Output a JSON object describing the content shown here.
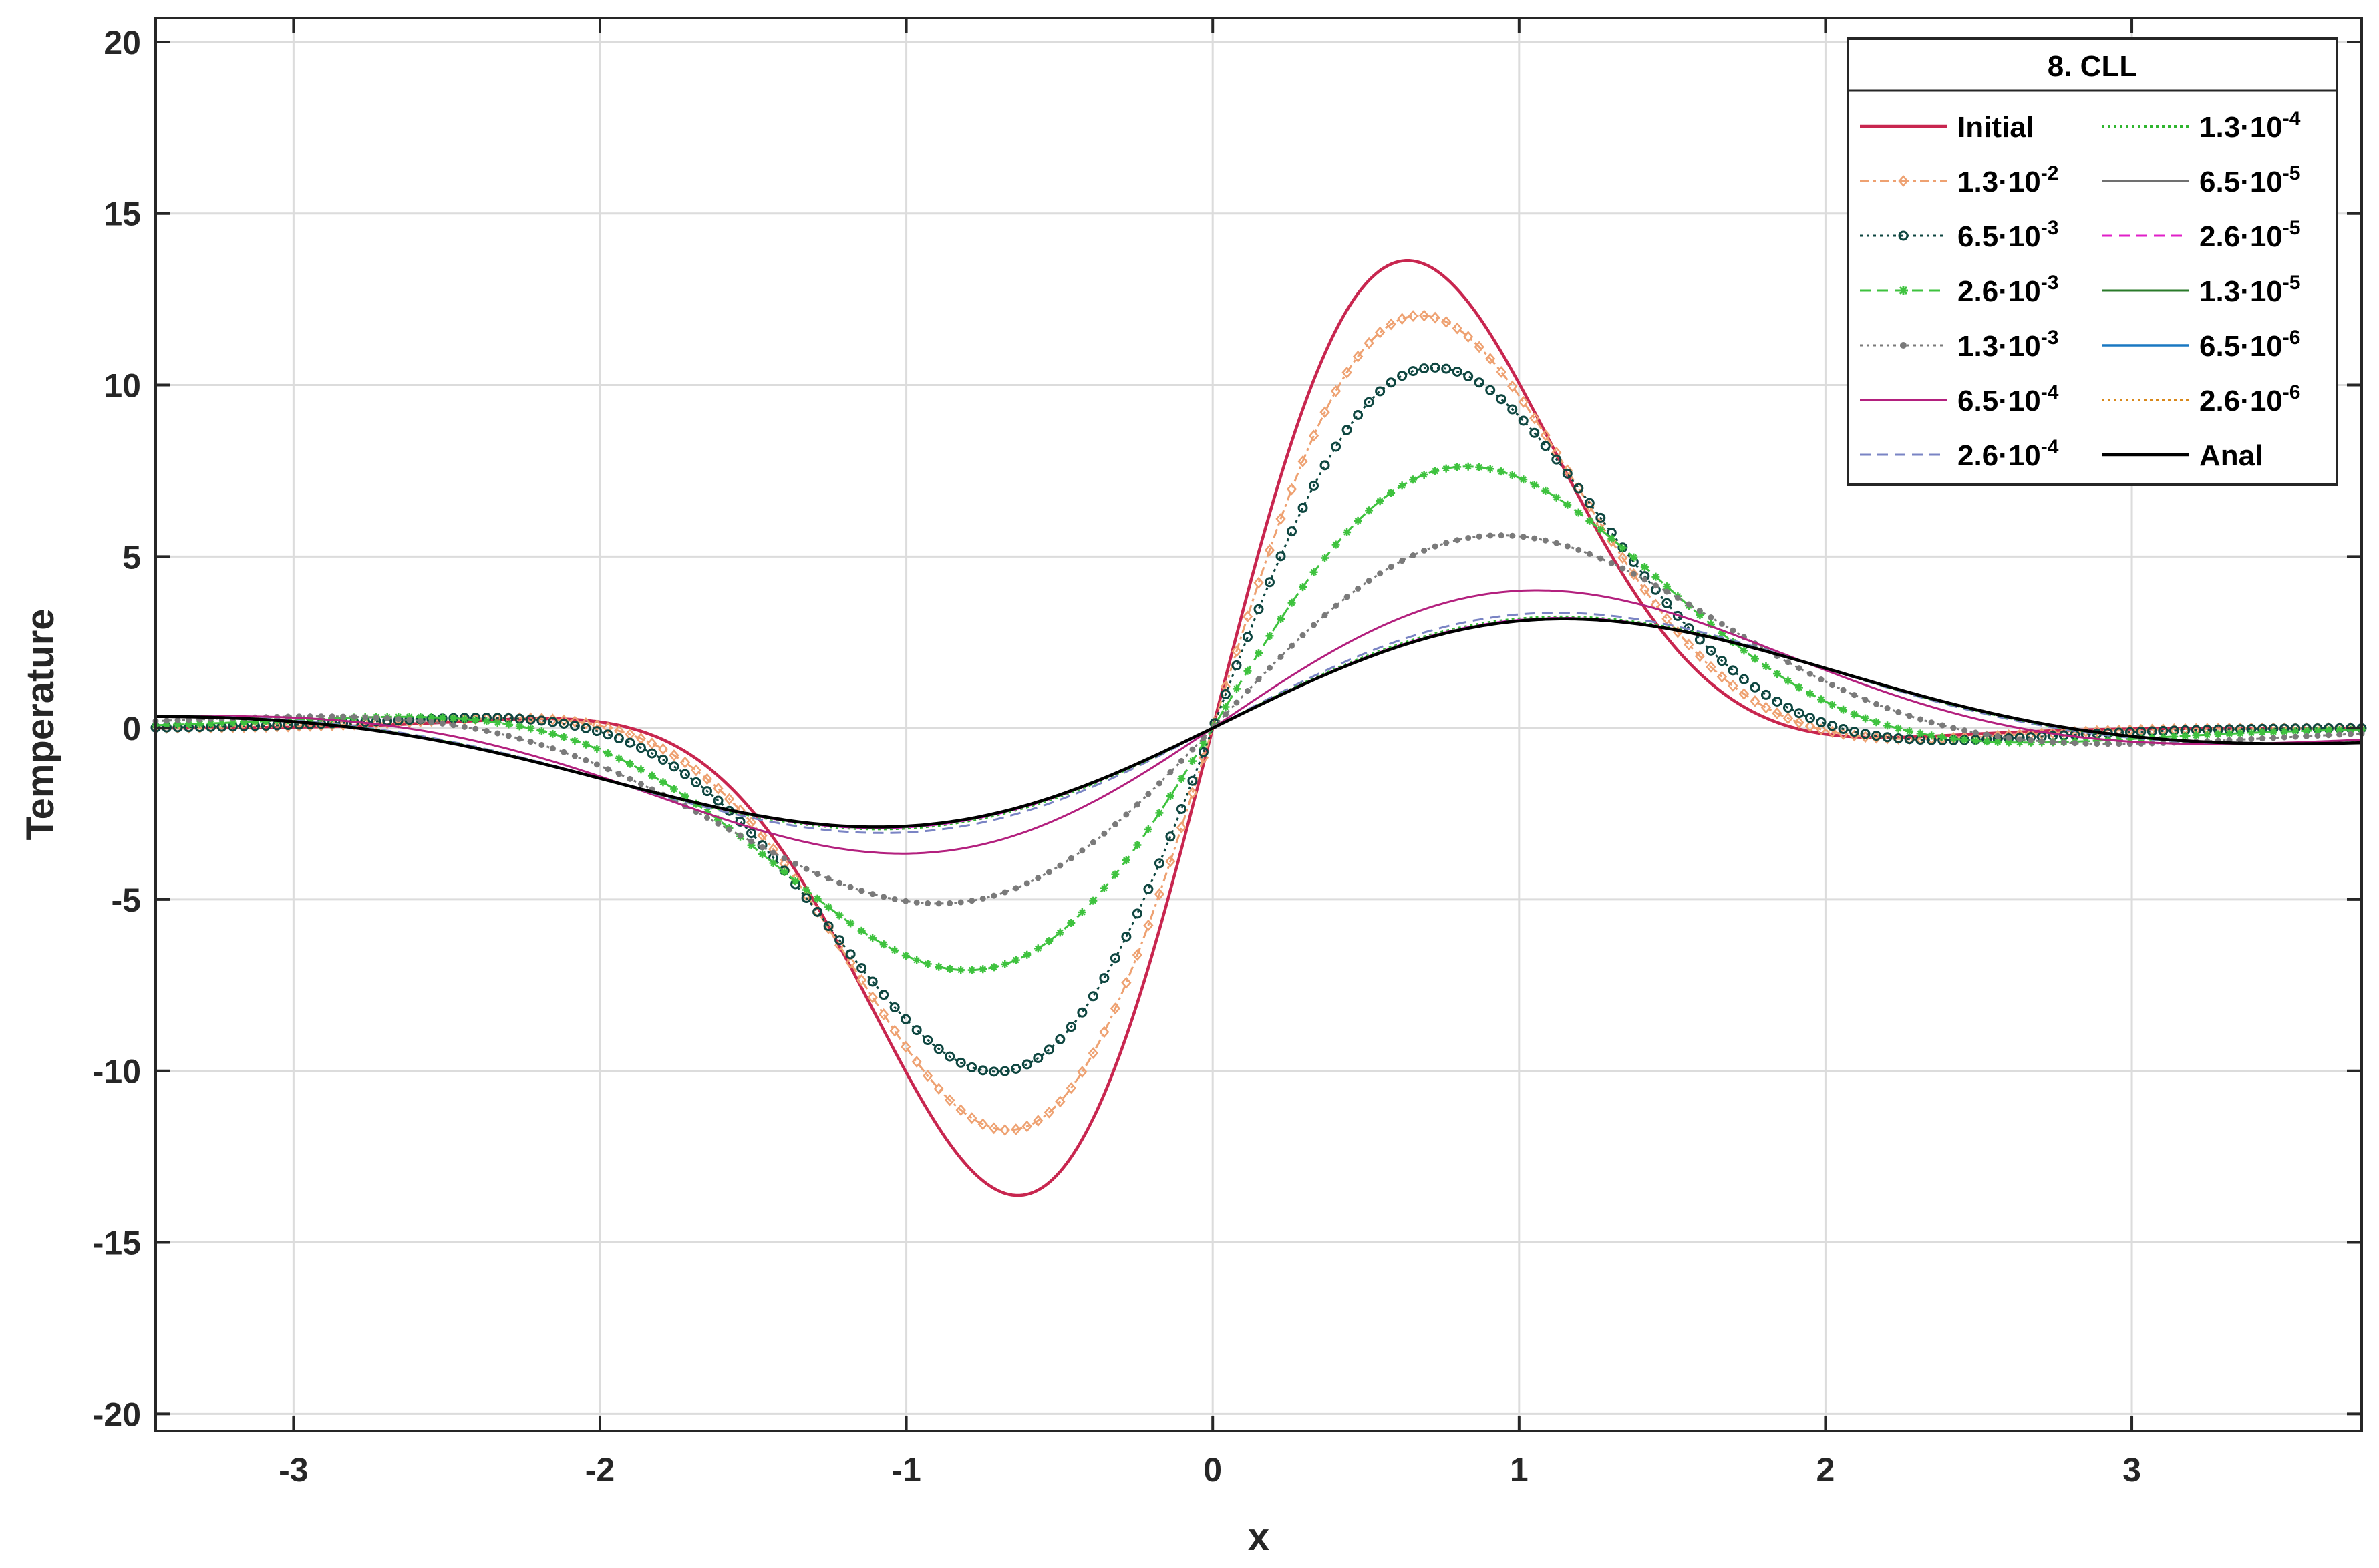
{
  "chart_data": {
    "type": "line",
    "title": "",
    "xlabel": "x",
    "ylabel": "Temperature",
    "xlim": [
      -3.45,
      3.75
    ],
    "ylim": [
      -20.5,
      20.7
    ],
    "xticks": [
      -3,
      -2,
      -1,
      0,
      1,
      2,
      3
    ],
    "xtick_labels": [
      "-3",
      "-2",
      "-1",
      "0",
      "1",
      "2",
      "3"
    ],
    "yticks": [
      -20,
      -15,
      -10,
      -5,
      0,
      5,
      10,
      15,
      20
    ],
    "ytick_labels": [
      "-20",
      "-15",
      "-10",
      "-5",
      "0",
      "5",
      "10",
      "15",
      "20"
    ],
    "grid": true,
    "legend": {
      "title": "8. CLL",
      "position": "top-right",
      "columns": 2
    },
    "series": [
      {
        "name": "Initial",
        "base": "Initial",
        "exp": "",
        "color": "#c8264f",
        "width": 4.5,
        "dash": "",
        "marker": "none",
        "amplitude": 1.0,
        "sigma": 1.0,
        "shift": 0.0
      },
      {
        "name": "1.3·10-2",
        "base": "1.3·10",
        "exp": "-2",
        "color": "#eea171",
        "width": 3,
        "dash": "14 6 4 6",
        "marker": "diamond",
        "amplitude": 1.0,
        "sigma": 1.075,
        "shift": 0.015
      },
      {
        "name": "6.5·10-3",
        "base": "6.5·10",
        "exp": "-3",
        "color": "#0e4640",
        "width": 3,
        "dash": "4 6",
        "marker": "circle",
        "amplitude": 1.0,
        "sigma": 1.16,
        "shift": 0.03
      },
      {
        "name": "2.6·10-3",
        "base": "2.6·10",
        "exp": "-3",
        "color": "#3ec23e",
        "width": 3,
        "dash": "16 10",
        "marker": "star",
        "amplitude": 1.0,
        "sigma": 1.38,
        "shift": 0.06
      },
      {
        "name": "1.3·10-3",
        "base": "1.3·10",
        "exp": "-3",
        "color": "#7a7a7a",
        "width": 3,
        "dash": "4 6",
        "marker": "dot",
        "amplitude": 1.0,
        "sigma": 1.62,
        "shift": 0.09
      },
      {
        "name": "6.5·10-4",
        "base": "6.5·10",
        "exp": "-4",
        "color": "#b3207e",
        "width": 3,
        "dash": "",
        "marker": "none",
        "amplitude": 1.0,
        "sigma": 1.92,
        "shift": 0.11
      },
      {
        "name": "2.6·10-4",
        "base": "2.6·10",
        "exp": "-4",
        "color": "#7a84c4",
        "width": 3,
        "dash": "16 10",
        "marker": "none",
        "amplitude": 1.0,
        "sigma": 2.1,
        "shift": 0.125
      },
      {
        "name": "1.3·10-4",
        "base": "1.3·10",
        "exp": "-4",
        "color": "#2fb52f",
        "width": 4,
        "dash": "4 5",
        "marker": "none",
        "amplitude": 1.0,
        "sigma": 2.14,
        "shift": 0.13
      },
      {
        "name": "6.5·10-5",
        "base": "6.5·10",
        "exp": "-5",
        "color": "#707070",
        "width": 2.5,
        "dash": "",
        "marker": "none",
        "amplitude": 1.0,
        "sigma": 2.15,
        "shift": 0.13
      },
      {
        "name": "2.6·10-5",
        "base": "2.6·10",
        "exp": "-5",
        "color": "#e020c8",
        "width": 3,
        "dash": "16 10",
        "marker": "none",
        "amplitude": 1.0,
        "sigma": 2.15,
        "shift": 0.13
      },
      {
        "name": "1.3·10-5",
        "base": "1.3·10",
        "exp": "-5",
        "color": "#2a7a2a",
        "width": 3,
        "dash": "",
        "marker": "none",
        "amplitude": 1.0,
        "sigma": 2.16,
        "shift": 0.13
      },
      {
        "name": "6.5·10-6",
        "base": "6.5·10",
        "exp": "-6",
        "color": "#1a78c2",
        "width": 3.5,
        "dash": "",
        "marker": "none",
        "amplitude": 1.0,
        "sigma": 2.16,
        "shift": 0.13
      },
      {
        "name": "2.6·10-6",
        "base": "2.6·10",
        "exp": "-6",
        "color": "#d9881a",
        "width": 3.5,
        "dash": "4 5",
        "marker": "none",
        "amplitude": 1.0,
        "sigma": 2.16,
        "shift": 0.13
      },
      {
        "name": "Anal",
        "base": "Anal",
        "exp": "",
        "color": "#000000",
        "width": 4.5,
        "dash": "",
        "marker": "none",
        "amplitude": 1.0,
        "sigma": 2.16,
        "shift": 0.135
      }
    ]
  }
}
